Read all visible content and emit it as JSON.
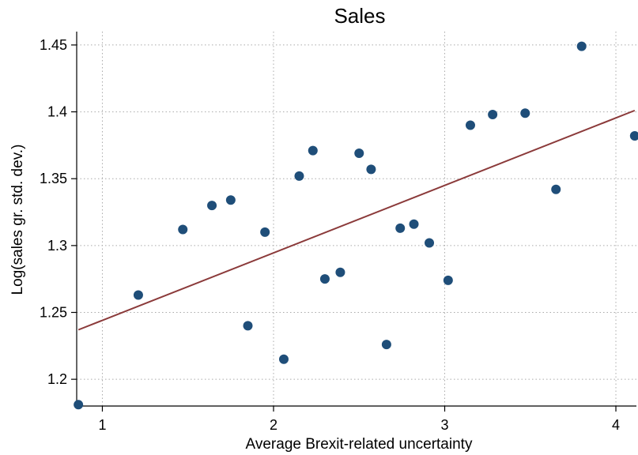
{
  "chart_data": {
    "type": "scatter",
    "title": "Sales",
    "xlabel": "Average Brexit-related uncertainty",
    "ylabel": "Log(sales gr. std. dev.)",
    "xlim": [
      0.85,
      4.12
    ],
    "ylim": [
      1.18,
      1.46
    ],
    "xticks": [
      1,
      2,
      3,
      4
    ],
    "yticks": [
      1.2,
      1.25,
      1.3,
      1.35,
      1.4,
      1.45
    ],
    "xtick_labels": [
      "1",
      "2",
      "3",
      "4"
    ],
    "ytick_labels": [
      "1.2",
      "1.25",
      "1.3",
      "1.35",
      "1.4",
      "1.45"
    ],
    "grid": true,
    "colors": {
      "points": "#1f4e79",
      "fit_line": "#8b3a3a",
      "grid": "#aaaaaa"
    },
    "series": [
      {
        "kind": "points",
        "x": [
          0.86,
          1.21,
          1.47,
          1.64,
          1.75,
          1.85,
          1.95,
          2.06,
          2.15,
          2.23,
          2.3,
          2.39,
          2.5,
          2.57,
          2.66,
          2.74,
          2.82,
          2.91,
          3.02,
          3.15,
          3.28,
          3.47,
          3.65,
          3.8,
          4.11
        ],
        "y": [
          1.181,
          1.263,
          1.312,
          1.33,
          1.334,
          1.24,
          1.31,
          1.215,
          1.352,
          1.371,
          1.275,
          1.28,
          1.369,
          1.357,
          1.226,
          1.313,
          1.316,
          1.302,
          1.274,
          1.39,
          1.398,
          1.399,
          1.342,
          1.449,
          1.382
        ]
      },
      {
        "kind": "fit",
        "x": [
          0.86,
          4.11
        ],
        "y": [
          1.237,
          1.401
        ]
      }
    ]
  }
}
